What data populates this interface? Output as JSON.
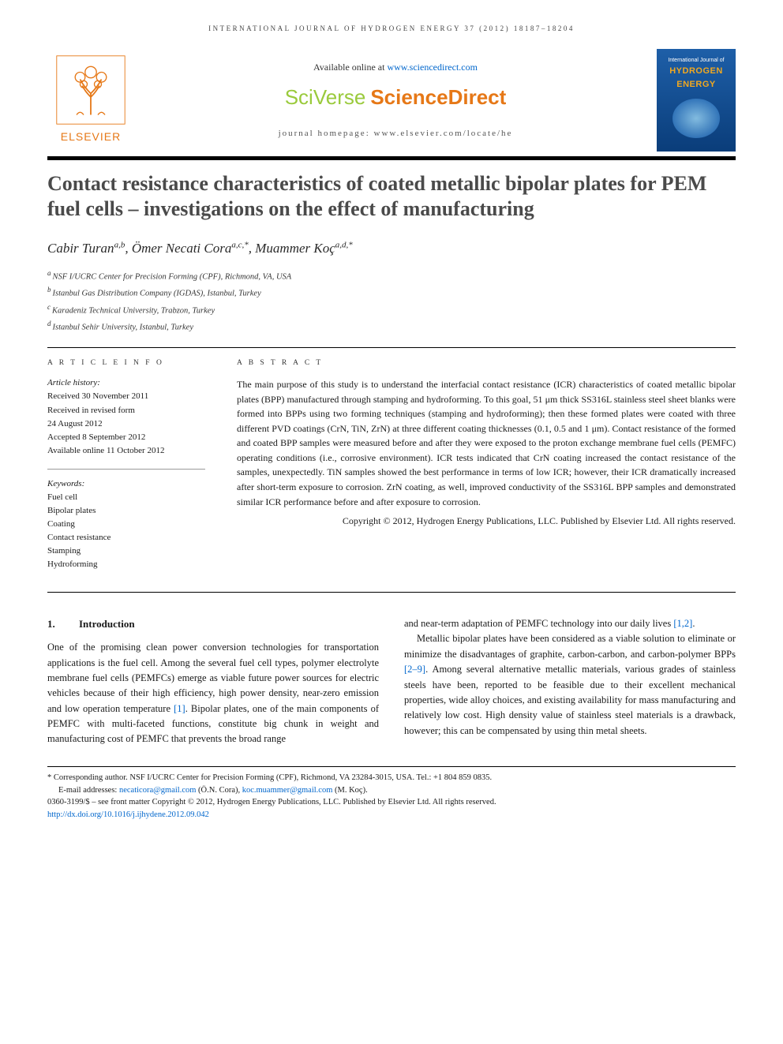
{
  "running_head": "INTERNATIONAL JOURNAL OF HYDROGEN ENERGY 37 (2012) 18187–18204",
  "header": {
    "publisher_name": "ELSEVIER",
    "available_prefix": "Available online at ",
    "available_url": "www.sciencedirect.com",
    "brand_left": "SciVerse",
    "brand_right": "ScienceDirect",
    "homepage_label": "journal homepage: www.elsevier.com/locate/he",
    "cover": {
      "line1": "International Journal of",
      "line2": "HYDROGEN",
      "line3": "ENERGY"
    }
  },
  "colors": {
    "orange": "#e67817",
    "green": "#9aca3c",
    "link": "#0066cc",
    "cover_gradient_top": "#1e5fa8",
    "cover_gradient_bottom": "#0a3d7a",
    "cover_accent": "#f0a820",
    "title_gray": "#4a4a4a"
  },
  "article": {
    "title": "Contact resistance characteristics of coated metallic bipolar plates for PEM fuel cells – investigations on the effect of manufacturing",
    "authors_html": "Cabir Turan",
    "author1": "Cabir Turan",
    "author1_aff": "a,b",
    "author2": "Ömer Necati Cora",
    "author2_aff": "a,c,*",
    "author3": "Muammer Koç",
    "author3_aff": "a,d,*",
    "affiliations": {
      "a": "NSF I/UCRC Center for Precision Forming (CPF), Richmond, VA, USA",
      "b": "Istanbul Gas Distribution Company (IGDAS), Istanbul, Turkey",
      "c": "Karadeniz Technical University, Trabzon, Turkey",
      "d": "Istanbul Sehir University, Istanbul, Turkey"
    }
  },
  "info": {
    "head": "A R T I C L E   I N F O",
    "history_label": "Article history:",
    "received": "Received 30 November 2011",
    "revised1": "Received in revised form",
    "revised2": "24 August 2012",
    "accepted": "Accepted 8 September 2012",
    "online": "Available online 11 October 2012",
    "keywords_label": "Keywords:",
    "keywords": [
      "Fuel cell",
      "Bipolar plates",
      "Coating",
      "Contact resistance",
      "Stamping",
      "Hydroforming"
    ]
  },
  "abstract": {
    "head": "A B S T R A C T",
    "text": "The main purpose of this study is to understand the interfacial contact resistance (ICR) characteristics of coated metallic bipolar plates (BPP) manufactured through stamping and hydroforming. To this goal, 51 μm thick SS316L stainless steel sheet blanks were formed into BPPs using two forming techniques (stamping and hydroforming); then these formed plates were coated with three different PVD coatings (CrN, TiN, ZrN) at three different coating thicknesses (0.1, 0.5 and 1 μm). Contact resistance of the formed and coated BPP samples were measured before and after they were exposed to the proton exchange membrane fuel cells (PEMFC) operating conditions (i.e., corrosive environment). ICR tests indicated that CrN coating increased the contact resistance of the samples, unexpectedly. TiN samples showed the best performance in terms of low ICR; however, their ICR dramatically increased after short-term exposure to corrosion. ZrN coating, as well, improved conductivity of the SS316L BPP samples and demonstrated similar ICR performance before and after exposure to corrosion.",
    "copyright": "Copyright © 2012, Hydrogen Energy Publications, LLC. Published by Elsevier Ltd. All rights reserved."
  },
  "section1": {
    "num": "1.",
    "title": "Introduction",
    "para1": "One of the promising clean power conversion technologies for transportation applications is the fuel cell. Among the several fuel cell types, polymer electrolyte membrane fuel cells (PEMFCs) emerge as viable future power sources for electric vehicles because of their high efficiency, high power density, near-zero emission and low operation temperature [1]. Bipolar plates, one of the main components of PEMFC with multi-faceted functions, constitute big chunk in weight and manufacturing cost of PEMFC that prevents the broad range",
    "para2": "and near-term adaptation of PEMFC technology into our daily lives [1,2].",
    "para3": "Metallic bipolar plates have been considered as a viable solution to eliminate or minimize the disadvantages of graphite, carbon-carbon, and carbon-polymer BPPs [2–9]. Among several alternative metallic materials, various grades of stainless steels have been, reported to be feasible due to their excellent mechanical properties, wide alloy choices, and existing availability for mass manufacturing and relatively low cost. High density value of stainless steel materials is a drawback, however; this can be compensated by using thin metal sheets."
  },
  "footnotes": {
    "corr": "* Corresponding author. NSF I/UCRC Center for Precision Forming (CPF), Richmond, VA 23284-3015, USA. Tel.: +1 804 859 0835.",
    "emails_label": "E-mail addresses: ",
    "email1": "necaticora@gmail.com",
    "email1_who": " (Ö.N. Cora), ",
    "email2": "koc.muammer@gmail.com",
    "email2_who": " (M. Koç).",
    "issn": "0360-3199/$ – see front matter Copyright © 2012, Hydrogen Energy Publications, LLC. Published by Elsevier Ltd. All rights reserved.",
    "doi_label": "http://dx.doi.org/",
    "doi": "10.1016/j.ijhydene.2012.09.042"
  }
}
